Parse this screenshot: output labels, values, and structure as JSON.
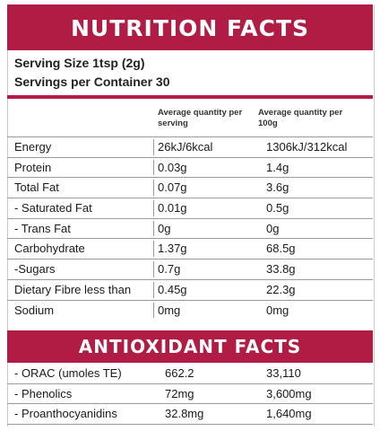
{
  "header": {
    "title": "NUTRITION FACTS"
  },
  "serving": {
    "size": "Serving Size 1tsp (2g)",
    "per_container": "Servings per Container 30"
  },
  "columns": {
    "per_serving": "Average quantity per serving",
    "per_100g": "Average quantity per 100g"
  },
  "nutrients": [
    {
      "name": "Energy",
      "per_serving": "26kJ/6kcal",
      "per_100g": "1306kJ/312kcal"
    },
    {
      "name": "Protein",
      "per_serving": "0.03g",
      "per_100g": "1.4g"
    },
    {
      "name": "Total Fat",
      "per_serving": "0.07g",
      "per_100g": "3.6g"
    },
    {
      "name": "- Saturated Fat",
      "per_serving": "0.01g",
      "per_100g": "0.5g"
    },
    {
      "name": "- Trans Fat",
      "per_serving": "0g",
      "per_100g": "0g"
    },
    {
      "name": "Carbohydrate",
      "per_serving": "1.37g",
      "per_100g": "68.5g"
    },
    {
      "name": "-Sugars",
      "per_serving": "0.7g",
      "per_100g": "33.8g"
    },
    {
      "name": "Dietary Fibre less than",
      "per_serving": "0.45g",
      "per_100g": "22.3g"
    },
    {
      "name": "Sodium",
      "per_serving": "0mg",
      "per_100g": "0mg"
    }
  ],
  "antioxidant": {
    "title": "ANTIOXIDANT FACTS",
    "items": [
      {
        "name": "- ORAC (umoles TE)",
        "per_serving": "662.2",
        "per_100g": "33,110"
      },
      {
        "name": "- Phenolics",
        "per_serving": "72mg",
        "per_100g": "3,600mg"
      },
      {
        "name": "- Proanthocyanidins",
        "per_serving": "32.8mg",
        "per_100g": "1,640mg"
      }
    ]
  },
  "colors": {
    "accent": "#b01c44",
    "text": "#1a1a1a"
  }
}
